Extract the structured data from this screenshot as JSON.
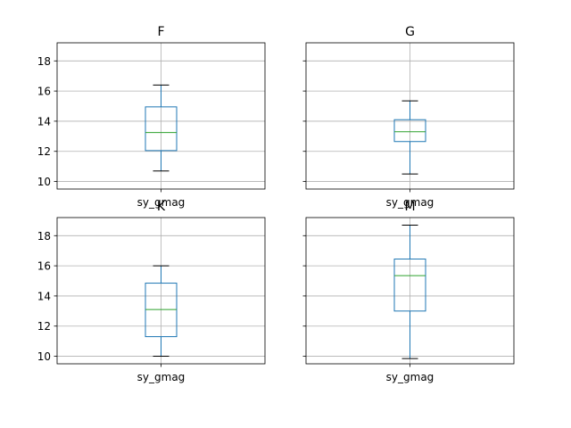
{
  "chart_data": [
    {
      "type": "box",
      "title": "F",
      "categories": [
        "sy_gmag"
      ],
      "stats": {
        "min": 10.7,
        "q1": 12.05,
        "median": 13.25,
        "q3": 14.95,
        "max": 16.4
      },
      "ylim": [
        9.5,
        19.2
      ],
      "yticks": [
        "10",
        "12",
        "14",
        "16",
        "18"
      ],
      "grid": true
    },
    {
      "type": "box",
      "title": "G",
      "categories": [
        "sy_gmag"
      ],
      "stats": {
        "min": 10.5,
        "q1": 12.65,
        "median": 13.3,
        "q3": 14.1,
        "max": 15.35
      },
      "ylim": [
        9.5,
        19.2
      ],
      "yticks": [
        "10",
        "12",
        "14",
        "16",
        "18"
      ],
      "grid": true
    },
    {
      "type": "box",
      "title": "K",
      "categories": [
        "sy_gmag"
      ],
      "stats": {
        "min": 10.0,
        "q1": 11.3,
        "median": 13.1,
        "q3": 14.85,
        "max": 16.0
      },
      "ylim": [
        9.5,
        19.2
      ],
      "yticks": [
        "10",
        "12",
        "14",
        "16",
        "18"
      ],
      "grid": true
    },
    {
      "type": "box",
      "title": "M",
      "categories": [
        "sy_gmag"
      ],
      "stats": {
        "min": 9.85,
        "q1": 13.0,
        "median": 15.35,
        "q3": 16.45,
        "max": 18.7
      },
      "ylim": [
        9.5,
        19.2
      ],
      "yticks": [
        "10",
        "12",
        "14",
        "16",
        "18"
      ],
      "grid": true
    }
  ]
}
